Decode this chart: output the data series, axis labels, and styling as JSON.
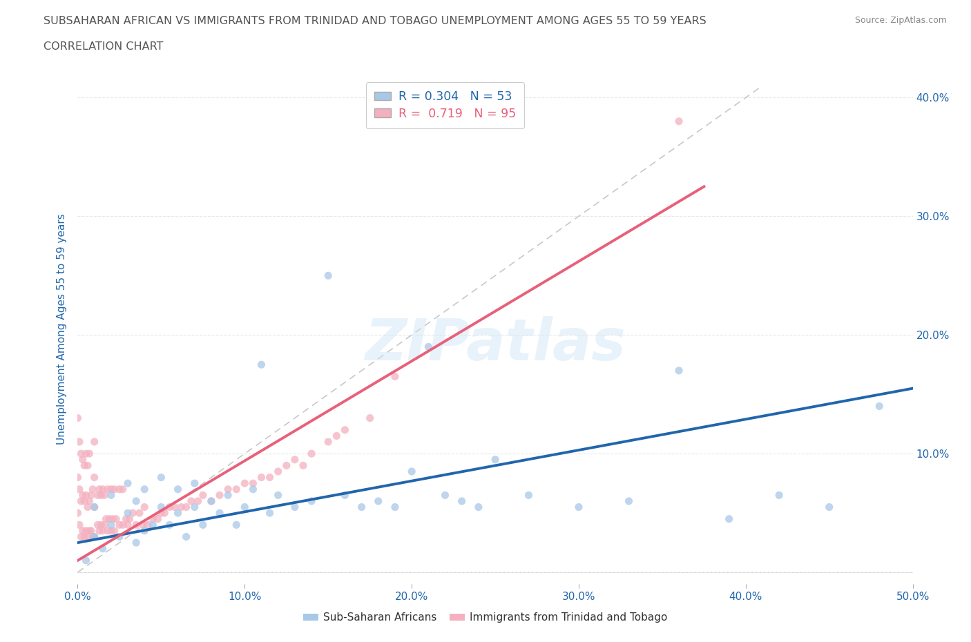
{
  "title_line1": "SUBSAHARAN AFRICAN VS IMMIGRANTS FROM TRINIDAD AND TOBAGO UNEMPLOYMENT AMONG AGES 55 TO 59 YEARS",
  "title_line2": "CORRELATION CHART",
  "source_text": "Source: ZipAtlas.com",
  "ylabel": "Unemployment Among Ages 55 to 59 years",
  "xlim": [
    0.0,
    0.5
  ],
  "ylim": [
    -0.01,
    0.42
  ],
  "xticks": [
    0.0,
    0.1,
    0.2,
    0.3,
    0.4,
    0.5
  ],
  "yticks": [
    0.0,
    0.1,
    0.2,
    0.3,
    0.4
  ],
  "xtick_labels": [
    "0.0%",
    "10.0%",
    "20.0%",
    "30.0%",
    "40.0%",
    "50.0%"
  ],
  "ytick_labels_right": [
    "",
    "10.0%",
    "20.0%",
    "30.0%",
    "40.0%"
  ],
  "watermark": "ZIPatlas",
  "blue_R": 0.304,
  "blue_N": 53,
  "pink_R": 0.719,
  "pink_N": 95,
  "blue_color": "#a8c8e8",
  "pink_color": "#f4b0c0",
  "blue_line_color": "#2166ac",
  "pink_line_color": "#e8607a",
  "diagonal_color": "#c8c8c8",
  "background_color": "#ffffff",
  "grid_color": "#e8e8e8",
  "title_color": "#555555",
  "axis_tick_color": "#2166ac",
  "blue_scatter_x": [
    0.005,
    0.01,
    0.01,
    0.015,
    0.02,
    0.02,
    0.025,
    0.03,
    0.03,
    0.035,
    0.035,
    0.04,
    0.04,
    0.045,
    0.05,
    0.05,
    0.055,
    0.06,
    0.06,
    0.065,
    0.07,
    0.07,
    0.075,
    0.08,
    0.085,
    0.09,
    0.095,
    0.1,
    0.105,
    0.11,
    0.115,
    0.12,
    0.13,
    0.14,
    0.15,
    0.16,
    0.17,
    0.18,
    0.19,
    0.2,
    0.21,
    0.22,
    0.23,
    0.24,
    0.25,
    0.27,
    0.3,
    0.33,
    0.36,
    0.39,
    0.42,
    0.45,
    0.48
  ],
  "blue_scatter_y": [
    0.01,
    0.03,
    0.055,
    0.02,
    0.04,
    0.065,
    0.03,
    0.05,
    0.075,
    0.025,
    0.06,
    0.035,
    0.07,
    0.04,
    0.055,
    0.08,
    0.04,
    0.05,
    0.07,
    0.03,
    0.055,
    0.075,
    0.04,
    0.06,
    0.05,
    0.065,
    0.04,
    0.055,
    0.07,
    0.175,
    0.05,
    0.065,
    0.055,
    0.06,
    0.25,
    0.065,
    0.055,
    0.06,
    0.055,
    0.085,
    0.19,
    0.065,
    0.06,
    0.055,
    0.095,
    0.065,
    0.055,
    0.06,
    0.17,
    0.045,
    0.065,
    0.055,
    0.14
  ],
  "pink_scatter_x": [
    0.0,
    0.0,
    0.0,
    0.001,
    0.001,
    0.001,
    0.002,
    0.002,
    0.002,
    0.003,
    0.003,
    0.003,
    0.004,
    0.004,
    0.004,
    0.005,
    0.005,
    0.005,
    0.006,
    0.006,
    0.006,
    0.007,
    0.007,
    0.007,
    0.008,
    0.008,
    0.009,
    0.009,
    0.01,
    0.01,
    0.01,
    0.01,
    0.012,
    0.012,
    0.013,
    0.013,
    0.014,
    0.014,
    0.015,
    0.015,
    0.016,
    0.016,
    0.017,
    0.018,
    0.018,
    0.019,
    0.02,
    0.02,
    0.021,
    0.022,
    0.022,
    0.023,
    0.025,
    0.025,
    0.027,
    0.027,
    0.029,
    0.03,
    0.031,
    0.033,
    0.035,
    0.037,
    0.039,
    0.04,
    0.042,
    0.045,
    0.048,
    0.05,
    0.052,
    0.055,
    0.058,
    0.062,
    0.065,
    0.068,
    0.072,
    0.075,
    0.08,
    0.085,
    0.09,
    0.095,
    0.1,
    0.105,
    0.11,
    0.115,
    0.12,
    0.125,
    0.13,
    0.135,
    0.14,
    0.15,
    0.155,
    0.16,
    0.175,
    0.19,
    0.36
  ],
  "pink_scatter_y": [
    0.05,
    0.08,
    0.13,
    0.04,
    0.07,
    0.11,
    0.03,
    0.06,
    0.1,
    0.035,
    0.065,
    0.095,
    0.03,
    0.06,
    0.09,
    0.035,
    0.065,
    0.1,
    0.03,
    0.055,
    0.09,
    0.035,
    0.06,
    0.1,
    0.035,
    0.065,
    0.03,
    0.07,
    0.03,
    0.055,
    0.08,
    0.11,
    0.04,
    0.065,
    0.035,
    0.07,
    0.04,
    0.065,
    0.035,
    0.07,
    0.04,
    0.065,
    0.045,
    0.035,
    0.07,
    0.045,
    0.035,
    0.07,
    0.045,
    0.035,
    0.07,
    0.045,
    0.04,
    0.07,
    0.04,
    0.07,
    0.045,
    0.04,
    0.045,
    0.05,
    0.04,
    0.05,
    0.04,
    0.055,
    0.04,
    0.045,
    0.045,
    0.05,
    0.05,
    0.055,
    0.055,
    0.055,
    0.055,
    0.06,
    0.06,
    0.065,
    0.06,
    0.065,
    0.07,
    0.07,
    0.075,
    0.075,
    0.08,
    0.08,
    0.085,
    0.09,
    0.095,
    0.09,
    0.1,
    0.11,
    0.115,
    0.12,
    0.13,
    0.165,
    0.38
  ],
  "blue_trendline": [
    0.0,
    0.5,
    0.025,
    0.155
  ],
  "pink_trendline": [
    0.0,
    0.375,
    0.01,
    0.325
  ],
  "diagonal": [
    0.0,
    0.41
  ]
}
